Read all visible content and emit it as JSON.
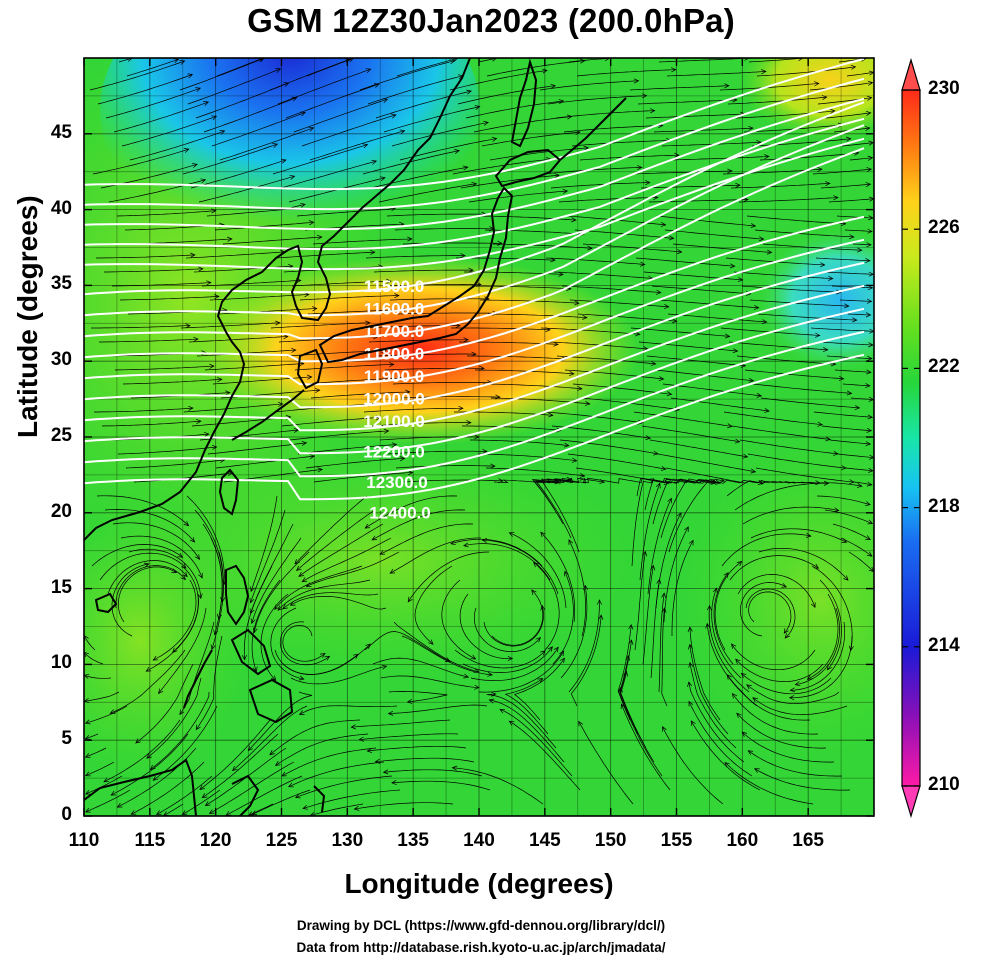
{
  "title": "GSM 12Z30Jan2023 (200.0hPa)",
  "xaxis": {
    "label": "Longitude (degrees)",
    "ticks": [
      "110",
      "115",
      "120",
      "125",
      "130",
      "135",
      "140",
      "145",
      "150",
      "155",
      "160",
      "165"
    ],
    "range": [
      110,
      170
    ]
  },
  "yaxis": {
    "label": "Latitude  (degrees)",
    "ticks": [
      "0",
      "5",
      "10",
      "15",
      "20",
      "25",
      "30",
      "35",
      "40",
      "45"
    ],
    "range": [
      0,
      50
    ]
  },
  "colorbar": {
    "ticks": [
      "230",
      "226",
      "222",
      "218",
      "214",
      "210"
    ],
    "range": [
      210,
      230
    ],
    "colors": [
      "#ff1aa6",
      "#8a10b8",
      "#1a1ad6",
      "#1a6cf2",
      "#17c4f2",
      "#18e6a8",
      "#27d63a",
      "#66e01e",
      "#c9ea1c",
      "#ffd21a",
      "#ff7a12",
      "#ff2a1a"
    ]
  },
  "contours": {
    "labels": [
      "11500.0",
      "11600.0",
      "11700.0",
      "11800.0",
      "11900.0",
      "12000.0",
      "12100.0",
      "12200.0",
      "12300.0",
      "12400.0"
    ]
  },
  "credits": {
    "line1": "Drawing by DCL (https://www.gfd-dennou.org/library/dcl/)",
    "line2": "Data from http://database.rish.kyoto-u.ac.jp/arch/jmadata/"
  },
  "map": {
    "field": "temperature",
    "highlights": [
      {
        "name": "warm-core",
        "lon": 136,
        "lat": 32
      },
      {
        "name": "cold-core",
        "lon": 127,
        "lat": 48
      }
    ]
  }
}
